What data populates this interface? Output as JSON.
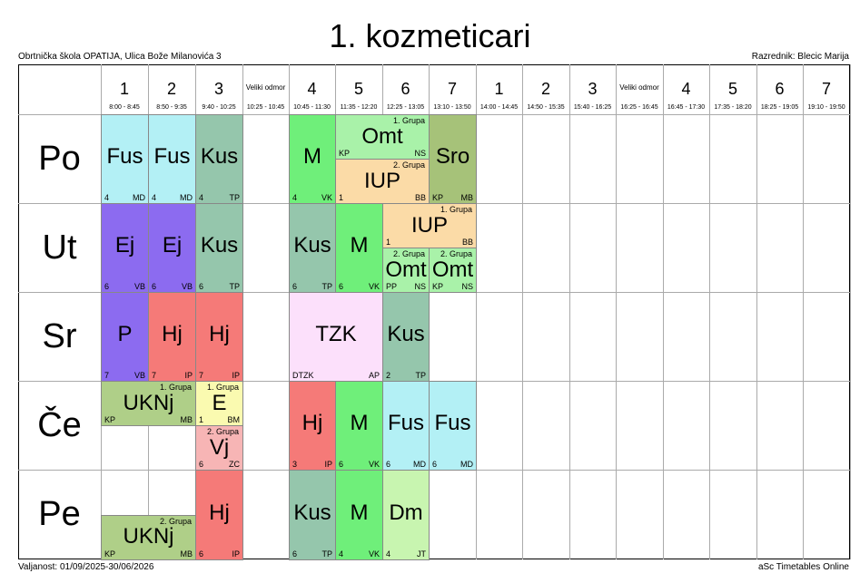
{
  "header": {
    "title": "1. kozmeticari",
    "school": "Obrtnička škola OPATIJA, Ulica Bože Milanovića 3",
    "class_teacher": "Razrednik: Blecic Marija"
  },
  "footer": {
    "validity": "Valjanost: 01/09/2025-30/06/2026",
    "brand": "aSc Timetables Online"
  },
  "periods": [
    {
      "label": "1",
      "time": "8:00 - 8:45"
    },
    {
      "label": "2",
      "time": "8:50 - 9:35"
    },
    {
      "label": "3",
      "time": "9:40 - 10:25"
    },
    {
      "label": "Veliki odmor",
      "time": "10:25 - 10:45"
    },
    {
      "label": "4",
      "time": "10:45 - 11:30"
    },
    {
      "label": "5",
      "time": "11:35 - 12:20"
    },
    {
      "label": "6",
      "time": "12:25 - 13:05"
    },
    {
      "label": "7",
      "time": "13:10 - 13:50"
    },
    {
      "label": "1",
      "time": "14:00 - 14:45"
    },
    {
      "label": "2",
      "time": "14:50 - 15:35"
    },
    {
      "label": "3",
      "time": "15:40 - 16:25"
    },
    {
      "label": "Veliki odmor",
      "time": "16:25 - 16:45"
    },
    {
      "label": "4",
      "time": "16:45 - 17:30"
    },
    {
      "label": "5",
      "time": "17:35 - 18:20"
    },
    {
      "label": "6",
      "time": "18:25 - 19:05"
    },
    {
      "label": "7",
      "time": "19:10 - 19:50"
    }
  ],
  "days": [
    "Po",
    "Ut",
    "Sr",
    "Če",
    "Pe"
  ],
  "colors": {
    "Fus": "#b3f0f5",
    "Kus": "#95c6ac",
    "M": "#6fef7a",
    "Omt": "#a9f2a9",
    "IUP": "#fbdba7",
    "Sro": "#a6c279",
    "Ej": "#8c6bf0",
    "P": "#8c6bf0",
    "Hj": "#f57a78",
    "TZK": "#fce0fb",
    "UKNj": "#afcf88",
    "E": "#fafab0",
    "Vj": "#f7b5b5",
    "Dm": "#c8f5b0"
  },
  "lessons": [
    {
      "day": 0,
      "col": 0,
      "span": 1,
      "frac": [
        0,
        1
      ],
      "subject": "Fus",
      "room": "4",
      "teacher": "MD",
      "group": ""
    },
    {
      "day": 0,
      "col": 1,
      "span": 1,
      "frac": [
        0,
        1
      ],
      "subject": "Fus",
      "room": "4",
      "teacher": "MD",
      "group": ""
    },
    {
      "day": 0,
      "col": 2,
      "span": 1,
      "frac": [
        0,
        1
      ],
      "subject": "Kus",
      "room": "4",
      "teacher": "TP",
      "group": ""
    },
    {
      "day": 0,
      "col": 4,
      "span": 1,
      "frac": [
        0,
        1
      ],
      "subject": "M",
      "room": "4",
      "teacher": "VK",
      "group": ""
    },
    {
      "day": 0,
      "col": 5,
      "span": 2,
      "frac": [
        0,
        0.5
      ],
      "subject": "Omt",
      "room": "KP",
      "teacher": "NS",
      "group": "1. Grupa"
    },
    {
      "day": 0,
      "col": 5,
      "span": 2,
      "frac": [
        0.5,
        1
      ],
      "subject": "IUP",
      "room": "1",
      "teacher": "BB",
      "group": "2. Grupa"
    },
    {
      "day": 0,
      "col": 7,
      "span": 1,
      "frac": [
        0,
        1
      ],
      "subject": "Sro",
      "room": "KP",
      "teacher": "MB",
      "group": ""
    },
    {
      "day": 1,
      "col": 0,
      "span": 1,
      "frac": [
        0,
        1
      ],
      "subject": "Ej",
      "room": "6",
      "teacher": "VB",
      "group": ""
    },
    {
      "day": 1,
      "col": 1,
      "span": 1,
      "frac": [
        0,
        1
      ],
      "subject": "Ej",
      "room": "6",
      "teacher": "VB",
      "group": ""
    },
    {
      "day": 1,
      "col": 2,
      "span": 1,
      "frac": [
        0,
        1
      ],
      "subject": "Kus",
      "room": "6",
      "teacher": "TP",
      "group": ""
    },
    {
      "day": 1,
      "col": 4,
      "span": 1,
      "frac": [
        0,
        1
      ],
      "subject": "Kus",
      "room": "6",
      "teacher": "TP",
      "group": ""
    },
    {
      "day": 1,
      "col": 5,
      "span": 1,
      "frac": [
        0,
        1
      ],
      "subject": "M",
      "room": "6",
      "teacher": "VK",
      "group": ""
    },
    {
      "day": 1,
      "col": 6,
      "span": 2,
      "frac": [
        0,
        0.5
      ],
      "subject": "IUP",
      "room": "1",
      "teacher": "BB",
      "group": "1. Grupa"
    },
    {
      "day": 1,
      "col": 6,
      "span": 1,
      "frac": [
        0.5,
        1
      ],
      "subject": "Omt",
      "room": "PP",
      "teacher": "NS",
      "group": "2. Grupa"
    },
    {
      "day": 1,
      "col": 7,
      "span": 1,
      "frac": [
        0.5,
        1
      ],
      "subject": "Omt",
      "room": "KP",
      "teacher": "NS",
      "group": "2. Grupa"
    },
    {
      "day": 2,
      "col": 0,
      "span": 1,
      "frac": [
        0,
        1
      ],
      "subject": "P",
      "room": "7",
      "teacher": "VB",
      "group": ""
    },
    {
      "day": 2,
      "col": 1,
      "span": 1,
      "frac": [
        0,
        1
      ],
      "subject": "Hj",
      "room": "7",
      "teacher": "IP",
      "group": ""
    },
    {
      "day": 2,
      "col": 2,
      "span": 1,
      "frac": [
        0,
        1
      ],
      "subject": "Hj",
      "room": "7",
      "teacher": "IP",
      "group": ""
    },
    {
      "day": 2,
      "col": 4,
      "span": 2,
      "frac": [
        0,
        1
      ],
      "subject": "TZK",
      "room": "DTZK",
      "teacher": "AP",
      "group": ""
    },
    {
      "day": 2,
      "col": 6,
      "span": 1,
      "frac": [
        0,
        1
      ],
      "subject": "Kus",
      "room": "2",
      "teacher": "TP",
      "group": ""
    },
    {
      "day": 3,
      "col": 0,
      "span": 2,
      "frac": [
        0,
        0.5
      ],
      "subject": "UKNj",
      "room": "KP",
      "teacher": "MB",
      "group": "1. Grupa"
    },
    {
      "day": 3,
      "col": 2,
      "span": 1,
      "frac": [
        0,
        0.5
      ],
      "subject": "E",
      "room": "1",
      "teacher": "BM",
      "group": "1. Grupa"
    },
    {
      "day": 3,
      "col": 2,
      "span": 1,
      "frac": [
        0.5,
        1
      ],
      "subject": "Vj",
      "room": "6",
      "teacher": "ZC",
      "group": "2. Grupa"
    },
    {
      "day": 3,
      "col": 4,
      "span": 1,
      "frac": [
        0,
        1
      ],
      "subject": "Hj",
      "room": "3",
      "teacher": "IP",
      "group": ""
    },
    {
      "day": 3,
      "col": 5,
      "span": 1,
      "frac": [
        0,
        1
      ],
      "subject": "M",
      "room": "6",
      "teacher": "VK",
      "group": ""
    },
    {
      "day": 3,
      "col": 6,
      "span": 1,
      "frac": [
        0,
        1
      ],
      "subject": "Fus",
      "room": "6",
      "teacher": "MD",
      "group": ""
    },
    {
      "day": 3,
      "col": 7,
      "span": 1,
      "frac": [
        0,
        1
      ],
      "subject": "Fus",
      "room": "6",
      "teacher": "MD",
      "group": ""
    },
    {
      "day": 4,
      "col": 0,
      "span": 2,
      "frac": [
        0.5,
        1
      ],
      "subject": "UKNj",
      "room": "KP",
      "teacher": "MB",
      "group": "2. Grupa"
    },
    {
      "day": 4,
      "col": 2,
      "span": 1,
      "frac": [
        0,
        1
      ],
      "subject": "Hj",
      "room": "6",
      "teacher": "IP",
      "group": ""
    },
    {
      "day": 4,
      "col": 4,
      "span": 1,
      "frac": [
        0,
        1
      ],
      "subject": "Kus",
      "room": "6",
      "teacher": "TP",
      "group": ""
    },
    {
      "day": 4,
      "col": 5,
      "span": 1,
      "frac": [
        0,
        1
      ],
      "subject": "M",
      "room": "4",
      "teacher": "VK",
      "group": ""
    },
    {
      "day": 4,
      "col": 6,
      "span": 1,
      "frac": [
        0,
        1
      ],
      "subject": "Dm",
      "room": "4",
      "teacher": "JT",
      "group": ""
    }
  ]
}
